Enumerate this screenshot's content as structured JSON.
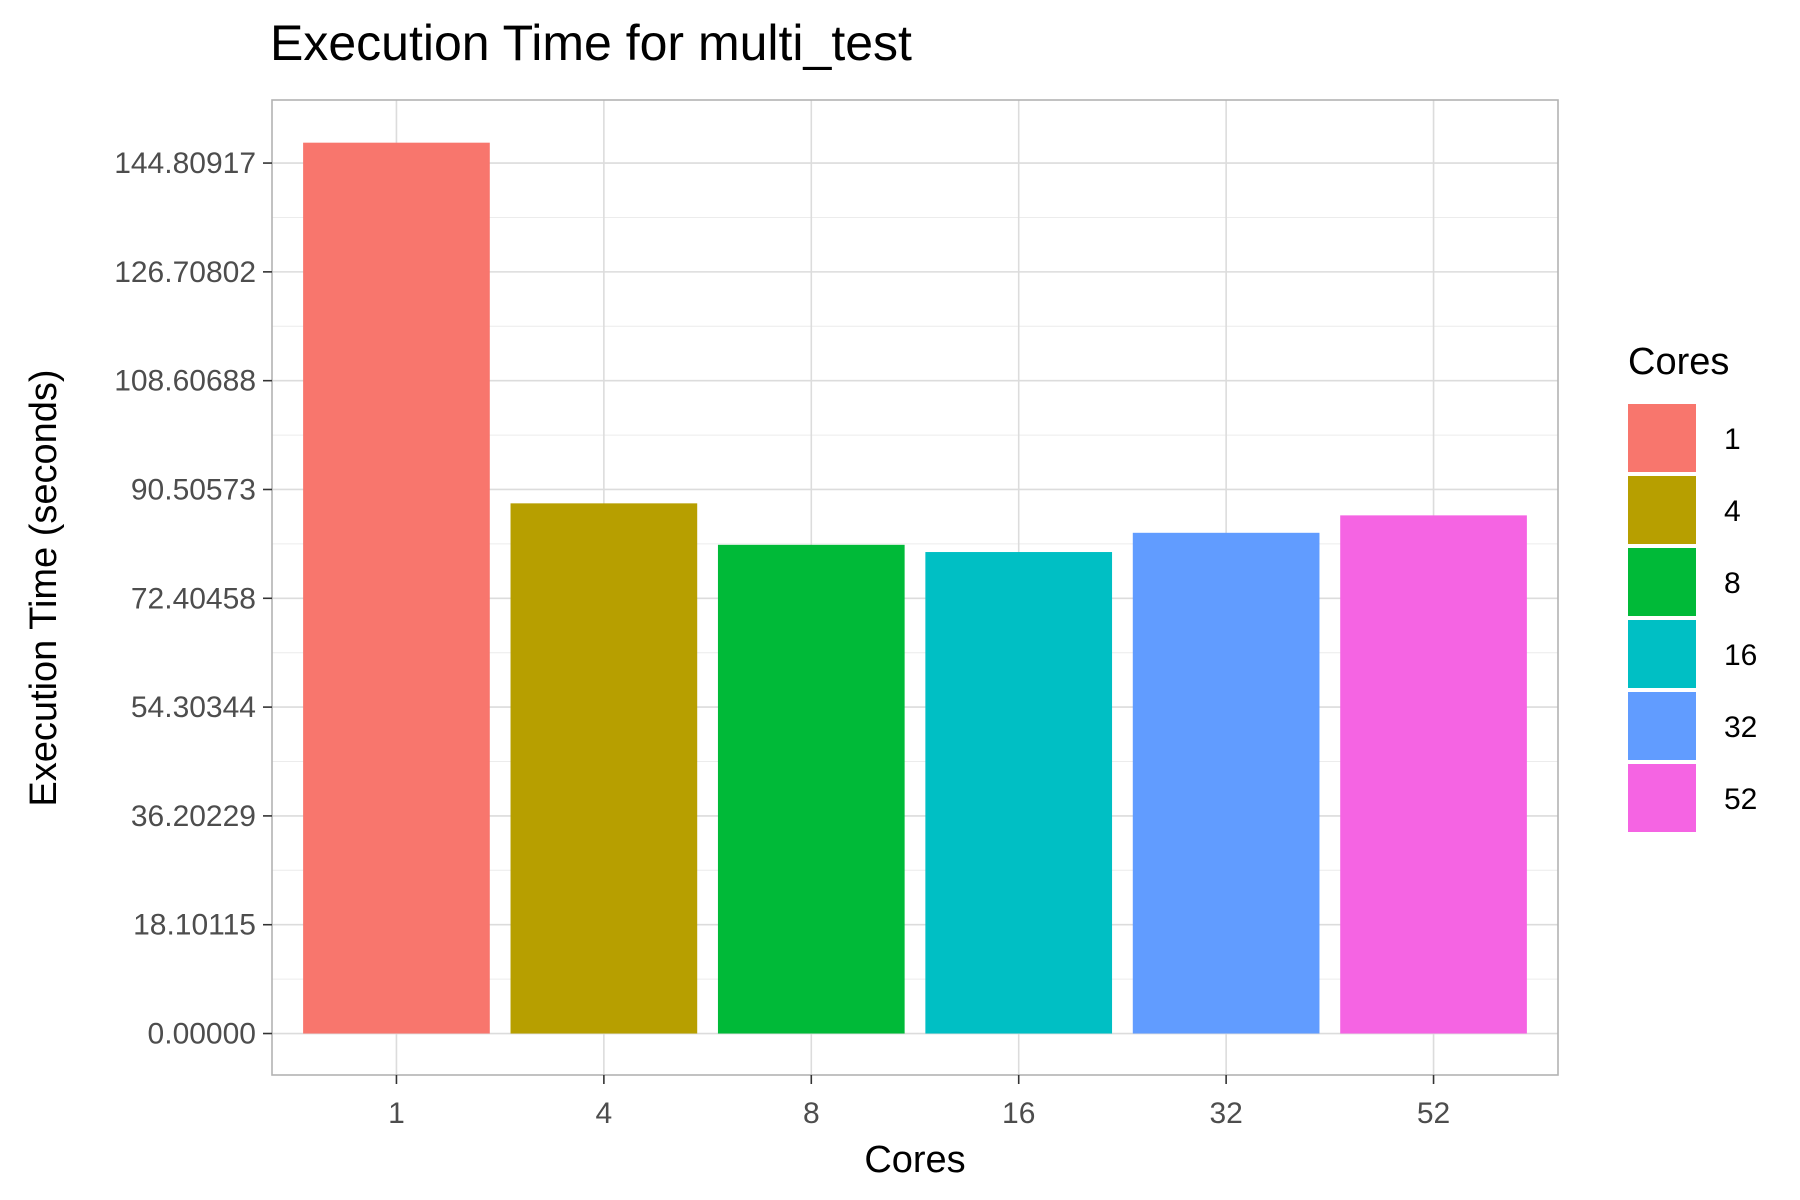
{
  "chart_data": {
    "type": "bar",
    "title": "Execution Time for multi_test",
    "xlabel": "Cores",
    "ylabel": "Execution Time (seconds)",
    "categories": [
      "1",
      "4",
      "8",
      "16",
      "32",
      "52"
    ],
    "values": [
      148.2,
      88.2,
      81.3,
      80.1,
      83.3,
      86.2
    ],
    "colors": [
      "#F8766D",
      "#B79F00",
      "#00BA38",
      "#00BFC4",
      "#619CFF",
      "#F564E3"
    ],
    "yticks": [
      0.0,
      18.10115,
      36.20229,
      54.30344,
      72.40458,
      90.50573,
      108.60688,
      126.70802,
      144.80917
    ],
    "ytick_labels": [
      "0.00000",
      "18.10115",
      "36.20229",
      "54.30344",
      "72.40458",
      "90.50573",
      "108.60688",
      "126.70802",
      "144.80917"
    ],
    "ylim": [
      -6.9,
      155.3
    ],
    "grid": true,
    "legend": {
      "title": "Cores",
      "position": "right",
      "entries": [
        "1",
        "4",
        "8",
        "16",
        "32",
        "52"
      ]
    }
  }
}
